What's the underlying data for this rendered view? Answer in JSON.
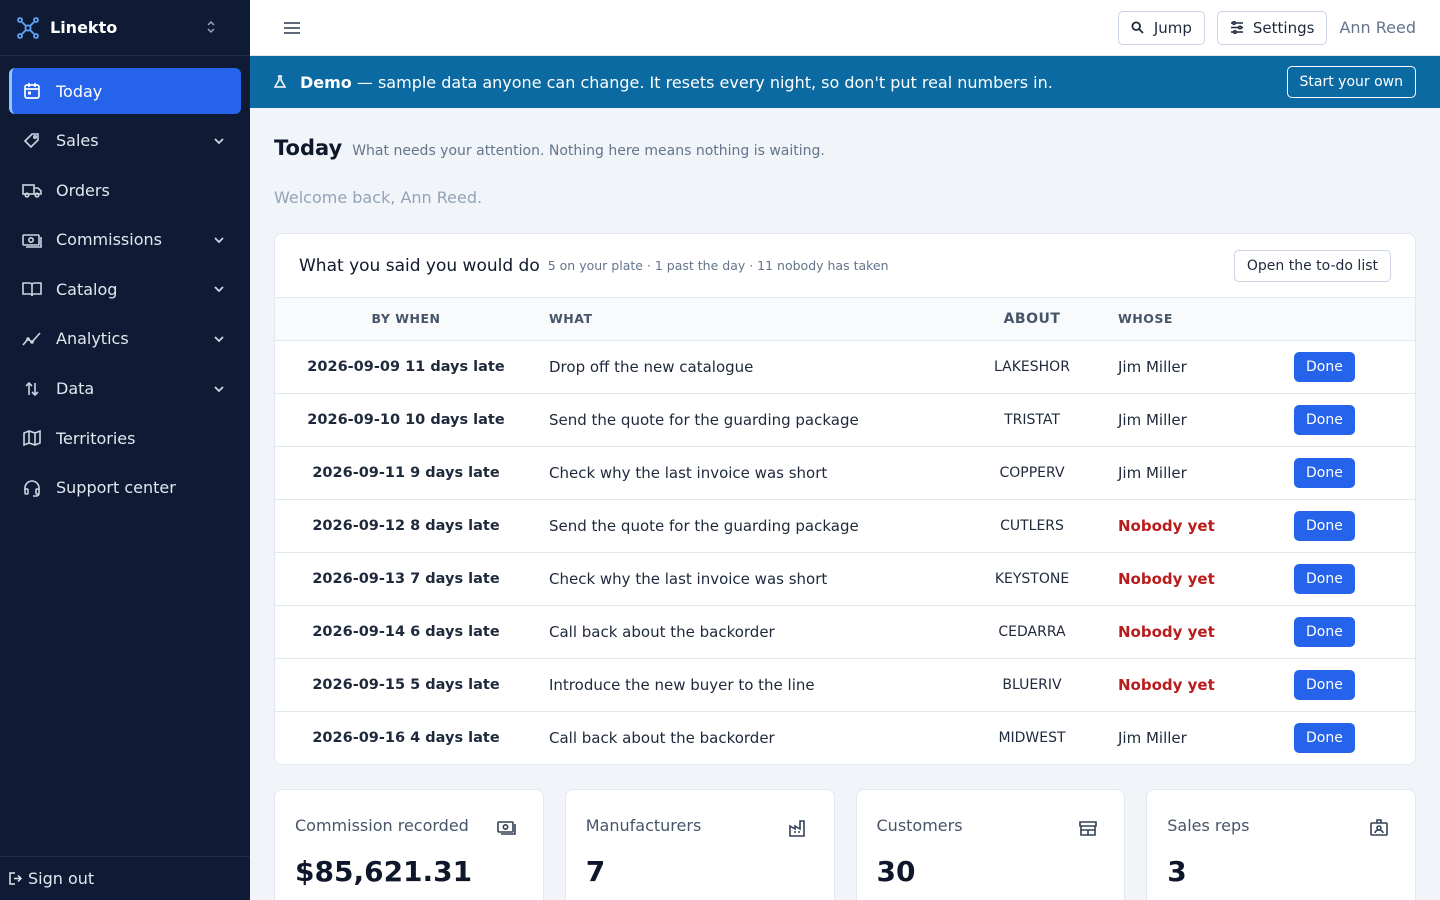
{
  "app": {
    "name": "Linekto"
  },
  "sidebar": {
    "items": [
      {
        "label": "Today",
        "icon": "calendar-icon",
        "active": true,
        "expandable": false
      },
      {
        "label": "Sales",
        "icon": "tag-icon",
        "expandable": true
      },
      {
        "label": "Orders",
        "icon": "truck-icon",
        "expandable": false
      },
      {
        "label": "Commissions",
        "icon": "cash-icon",
        "expandable": true
      },
      {
        "label": "Catalog",
        "icon": "book-icon",
        "expandable": true
      },
      {
        "label": "Analytics",
        "icon": "chart-line-icon",
        "expandable": true
      },
      {
        "label": "Data",
        "icon": "arrows-updown-icon",
        "expandable": true
      },
      {
        "label": "Territories",
        "icon": "map-icon",
        "expandable": false
      },
      {
        "label": "Support center",
        "icon": "headset-icon",
        "expandable": false
      }
    ],
    "sign_out": "Sign out"
  },
  "topbar": {
    "jump": "Jump",
    "settings": "Settings",
    "user": "Ann Reed"
  },
  "banner": {
    "demo": "Demo",
    "message": " — sample data anyone can change. It resets every night, so don't put real numbers in.",
    "start": "Start your own"
  },
  "page": {
    "title": "Today",
    "subtitle": "What needs your attention. Nothing here means nothing is waiting.",
    "welcome": "Welcome back, Ann Reed."
  },
  "todo": {
    "title": "What you said you would do",
    "meta": "5 on your plate · 1 past the day · 11 nobody has taken",
    "open_button": "Open the to-do list",
    "columns": [
      "BY WHEN",
      "WHAT",
      "ABOUT",
      "WHOSE"
    ],
    "done_label": "Done",
    "rows": [
      {
        "when": "2026-09-09 11 days late",
        "what": "Drop off the new catalogue",
        "about": "LAKESHOR",
        "whose": "Jim Miller",
        "nobody": false
      },
      {
        "when": "2026-09-10 10 days late",
        "what": "Send the quote for the guarding package",
        "about": "TRISTAT",
        "whose": "Jim Miller",
        "nobody": false
      },
      {
        "when": "2026-09-11 9 days late",
        "what": "Check why the last invoice was short",
        "about": "COPPERV",
        "whose": "Jim Miller",
        "nobody": false
      },
      {
        "when": "2026-09-12 8 days late",
        "what": "Send the quote for the guarding package",
        "about": "CUTLERS",
        "whose": "Nobody yet",
        "nobody": true
      },
      {
        "when": "2026-09-13 7 days late",
        "what": "Check why the last invoice was short",
        "about": "KEYSTONE",
        "whose": "Nobody yet",
        "nobody": true
      },
      {
        "when": "2026-09-14 6 days late",
        "what": "Call back about the backorder",
        "about": "CEDARRA",
        "whose": "Nobody yet",
        "nobody": true
      },
      {
        "when": "2026-09-15 5 days late",
        "what": "Introduce the new buyer to the line",
        "about": "BLUERIV",
        "whose": "Nobody yet",
        "nobody": true
      },
      {
        "when": "2026-09-16 4 days late",
        "what": "Call back about the backorder",
        "about": "MIDWEST",
        "whose": "Jim Miller",
        "nobody": false
      }
    ]
  },
  "stats": [
    {
      "label": "Commission recorded",
      "value": "$85,621.31",
      "icon": "cash-icon"
    },
    {
      "label": "Manufacturers",
      "value": "7",
      "icon": "factory-icon"
    },
    {
      "label": "Customers",
      "value": "30",
      "icon": "store-icon"
    },
    {
      "label": "Sales reps",
      "value": "3",
      "icon": "id-badge-icon"
    }
  ],
  "colors": {
    "sidebar": "#0f1b35",
    "active": "#2563eb",
    "banner": "#0a6aa1",
    "danger": "#b91c1c"
  }
}
